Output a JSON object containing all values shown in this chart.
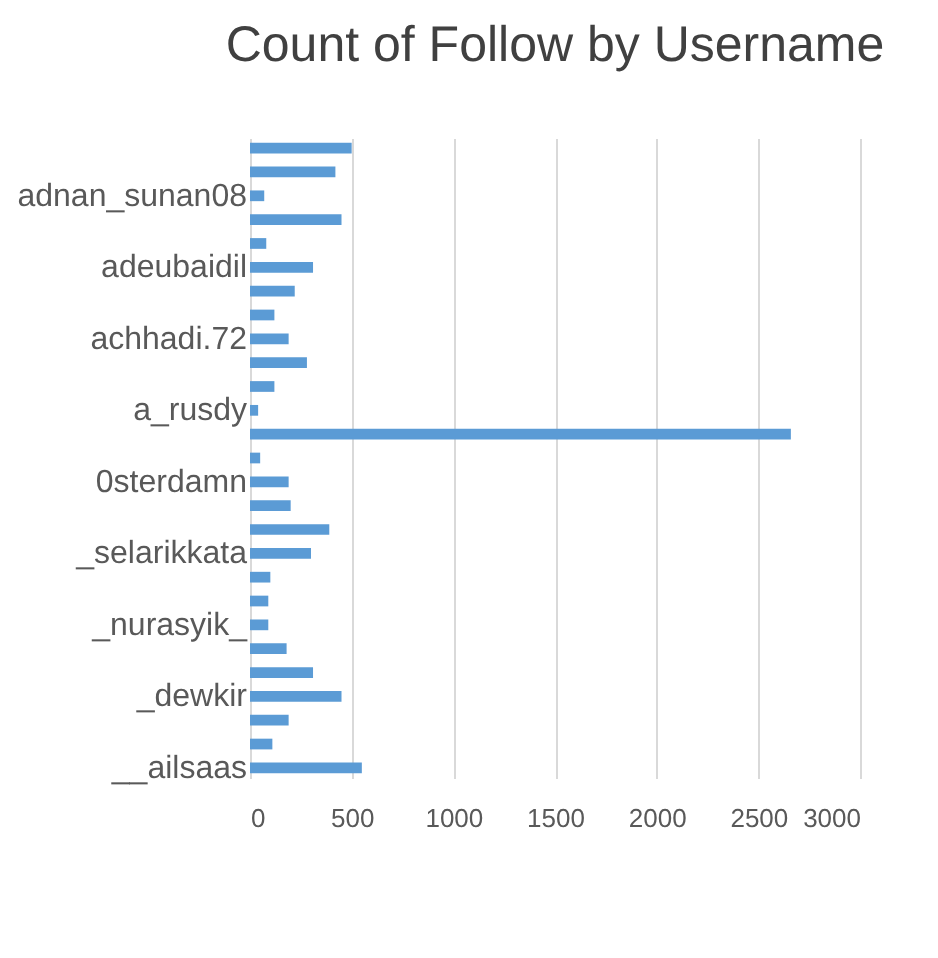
{
  "chart_data": {
    "type": "bar",
    "orientation": "horizontal",
    "title": "Count of Follow by Username",
    "categories": [
      null,
      null,
      "adnan_sunan08",
      null,
      null,
      "adeubaidil",
      null,
      null,
      "achhadi.72",
      null,
      null,
      "a_rusdy",
      null,
      null,
      "0sterdamn",
      null,
      null,
      "_selarikkata",
      null,
      null,
      "_nurasyik_",
      null,
      null,
      "_dewkir",
      null,
      null,
      "__ailsaas"
    ],
    "values": [
      500,
      420,
      70,
      450,
      80,
      310,
      220,
      120,
      190,
      280,
      120,
      40,
      2660,
      50,
      190,
      200,
      390,
      300,
      100,
      90,
      90,
      180,
      310,
      450,
      190,
      110,
      550
    ],
    "color": "#5b9bd5",
    "xlim": [
      0,
      3000
    ],
    "xticks": [
      0,
      500,
      1000,
      1500,
      2000,
      2500,
      3000
    ],
    "grid": "x"
  }
}
